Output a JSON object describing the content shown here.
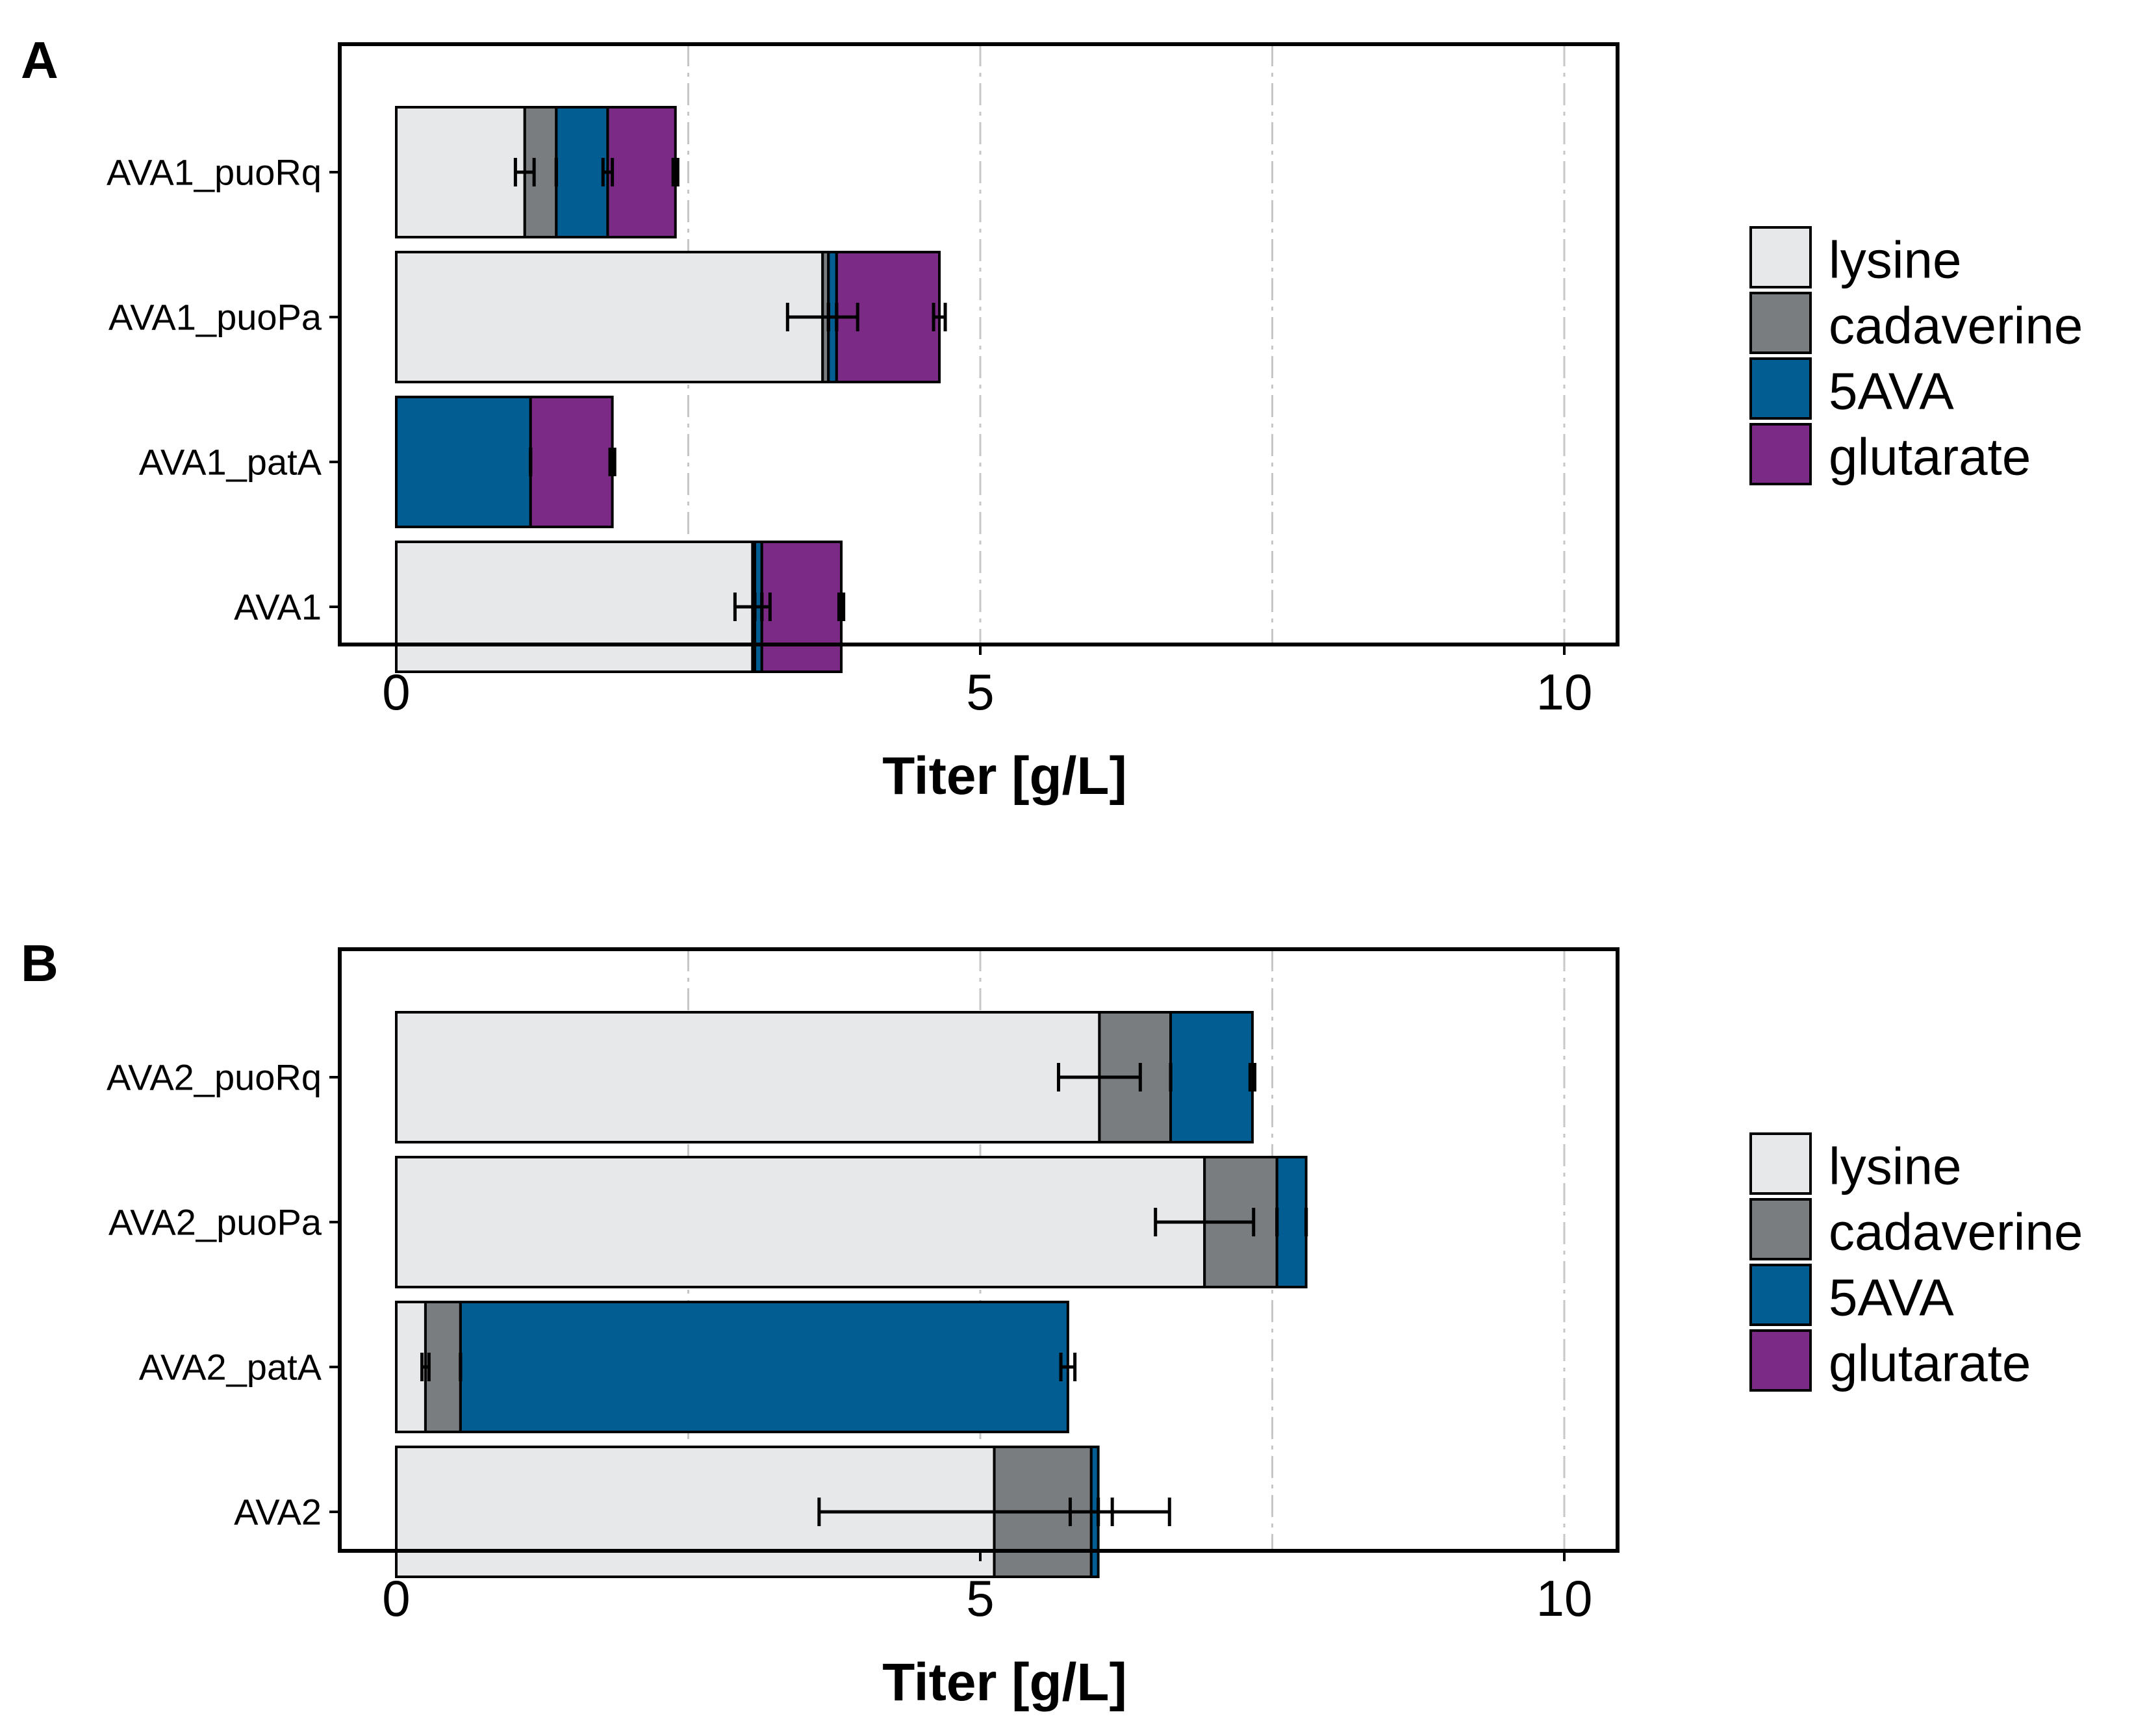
{
  "chart_data": [
    {
      "panel": "A",
      "type": "bar",
      "orientation": "horizontal",
      "stacked": true,
      "categories": [
        "AVA1_puoRq",
        "AVA1_puoPa",
        "AVA1_patA",
        "AVA1"
      ],
      "series": [
        {
          "name": "lysine",
          "color": "#e6e8ea",
          "values": [
            1.1,
            3.65,
            0.0,
            3.05
          ],
          "err": [
            0.08,
            0.3,
            0.0,
            0.15
          ]
        },
        {
          "name": "cadaverine",
          "color": "#7a7d7f",
          "values": [
            0.27,
            0.05,
            0.0,
            0.02
          ],
          "err": [
            0.0,
            0.0,
            0.0,
            0.0
          ]
        },
        {
          "name": "5AVA",
          "color": "#025e92",
          "values": [
            0.44,
            0.07,
            1.15,
            0.06
          ],
          "err": [
            0.04,
            0.0,
            0.0,
            0.0
          ]
        },
        {
          "name": "glutarate",
          "color": "#7b2a85",
          "values": [
            0.58,
            0.88,
            0.7,
            0.68
          ],
          "err": [
            0.02,
            0.05,
            0.02,
            0.02
          ]
        }
      ],
      "xlabel": "Titer [g/L]",
      "xlim": [
        -0.5,
        10.5
      ],
      "xticks": [
        0,
        5,
        10
      ],
      "xtick_labels": [
        "0",
        "5",
        "10"
      ],
      "gridlines": [
        2.5,
        5,
        7.5,
        10
      ],
      "legend_position": "right"
    },
    {
      "panel": "B",
      "type": "bar",
      "orientation": "horizontal",
      "stacked": true,
      "categories": [
        "AVA2_puoRq",
        "AVA2_puoPa",
        "AVA2_patA",
        "AVA2"
      ],
      "series": [
        {
          "name": "lysine",
          "color": "#e6e8ea",
          "values": [
            6.02,
            6.92,
            0.25,
            5.12
          ],
          "err": [
            0.35,
            0.42,
            0.03,
            1.5
          ]
        },
        {
          "name": "cadaverine",
          "color": "#7a7d7f",
          "values": [
            0.61,
            0.62,
            0.3,
            0.83
          ],
          "err": [
            0.0,
            0.0,
            0.0,
            0.18
          ]
        },
        {
          "name": "5AVA",
          "color": "#025e92",
          "values": [
            0.7,
            0.25,
            5.2,
            0.06
          ],
          "err": [
            0.02,
            0.0,
            0.06,
            0.0
          ]
        },
        {
          "name": "glutarate",
          "color": "#7b2a85",
          "values": [
            0.0,
            0.0,
            0.0,
            0.0
          ],
          "err": [
            0.0,
            0.0,
            0.0,
            0.0
          ]
        }
      ],
      "xlabel": "Titer [g/L]",
      "xlim": [
        -0.5,
        10.5
      ],
      "xticks": [
        0,
        5,
        10
      ],
      "xtick_labels": [
        "0",
        "5",
        "10"
      ],
      "gridlines": [
        2.5,
        5,
        7.5,
        10
      ],
      "legend_position": "right"
    }
  ]
}
